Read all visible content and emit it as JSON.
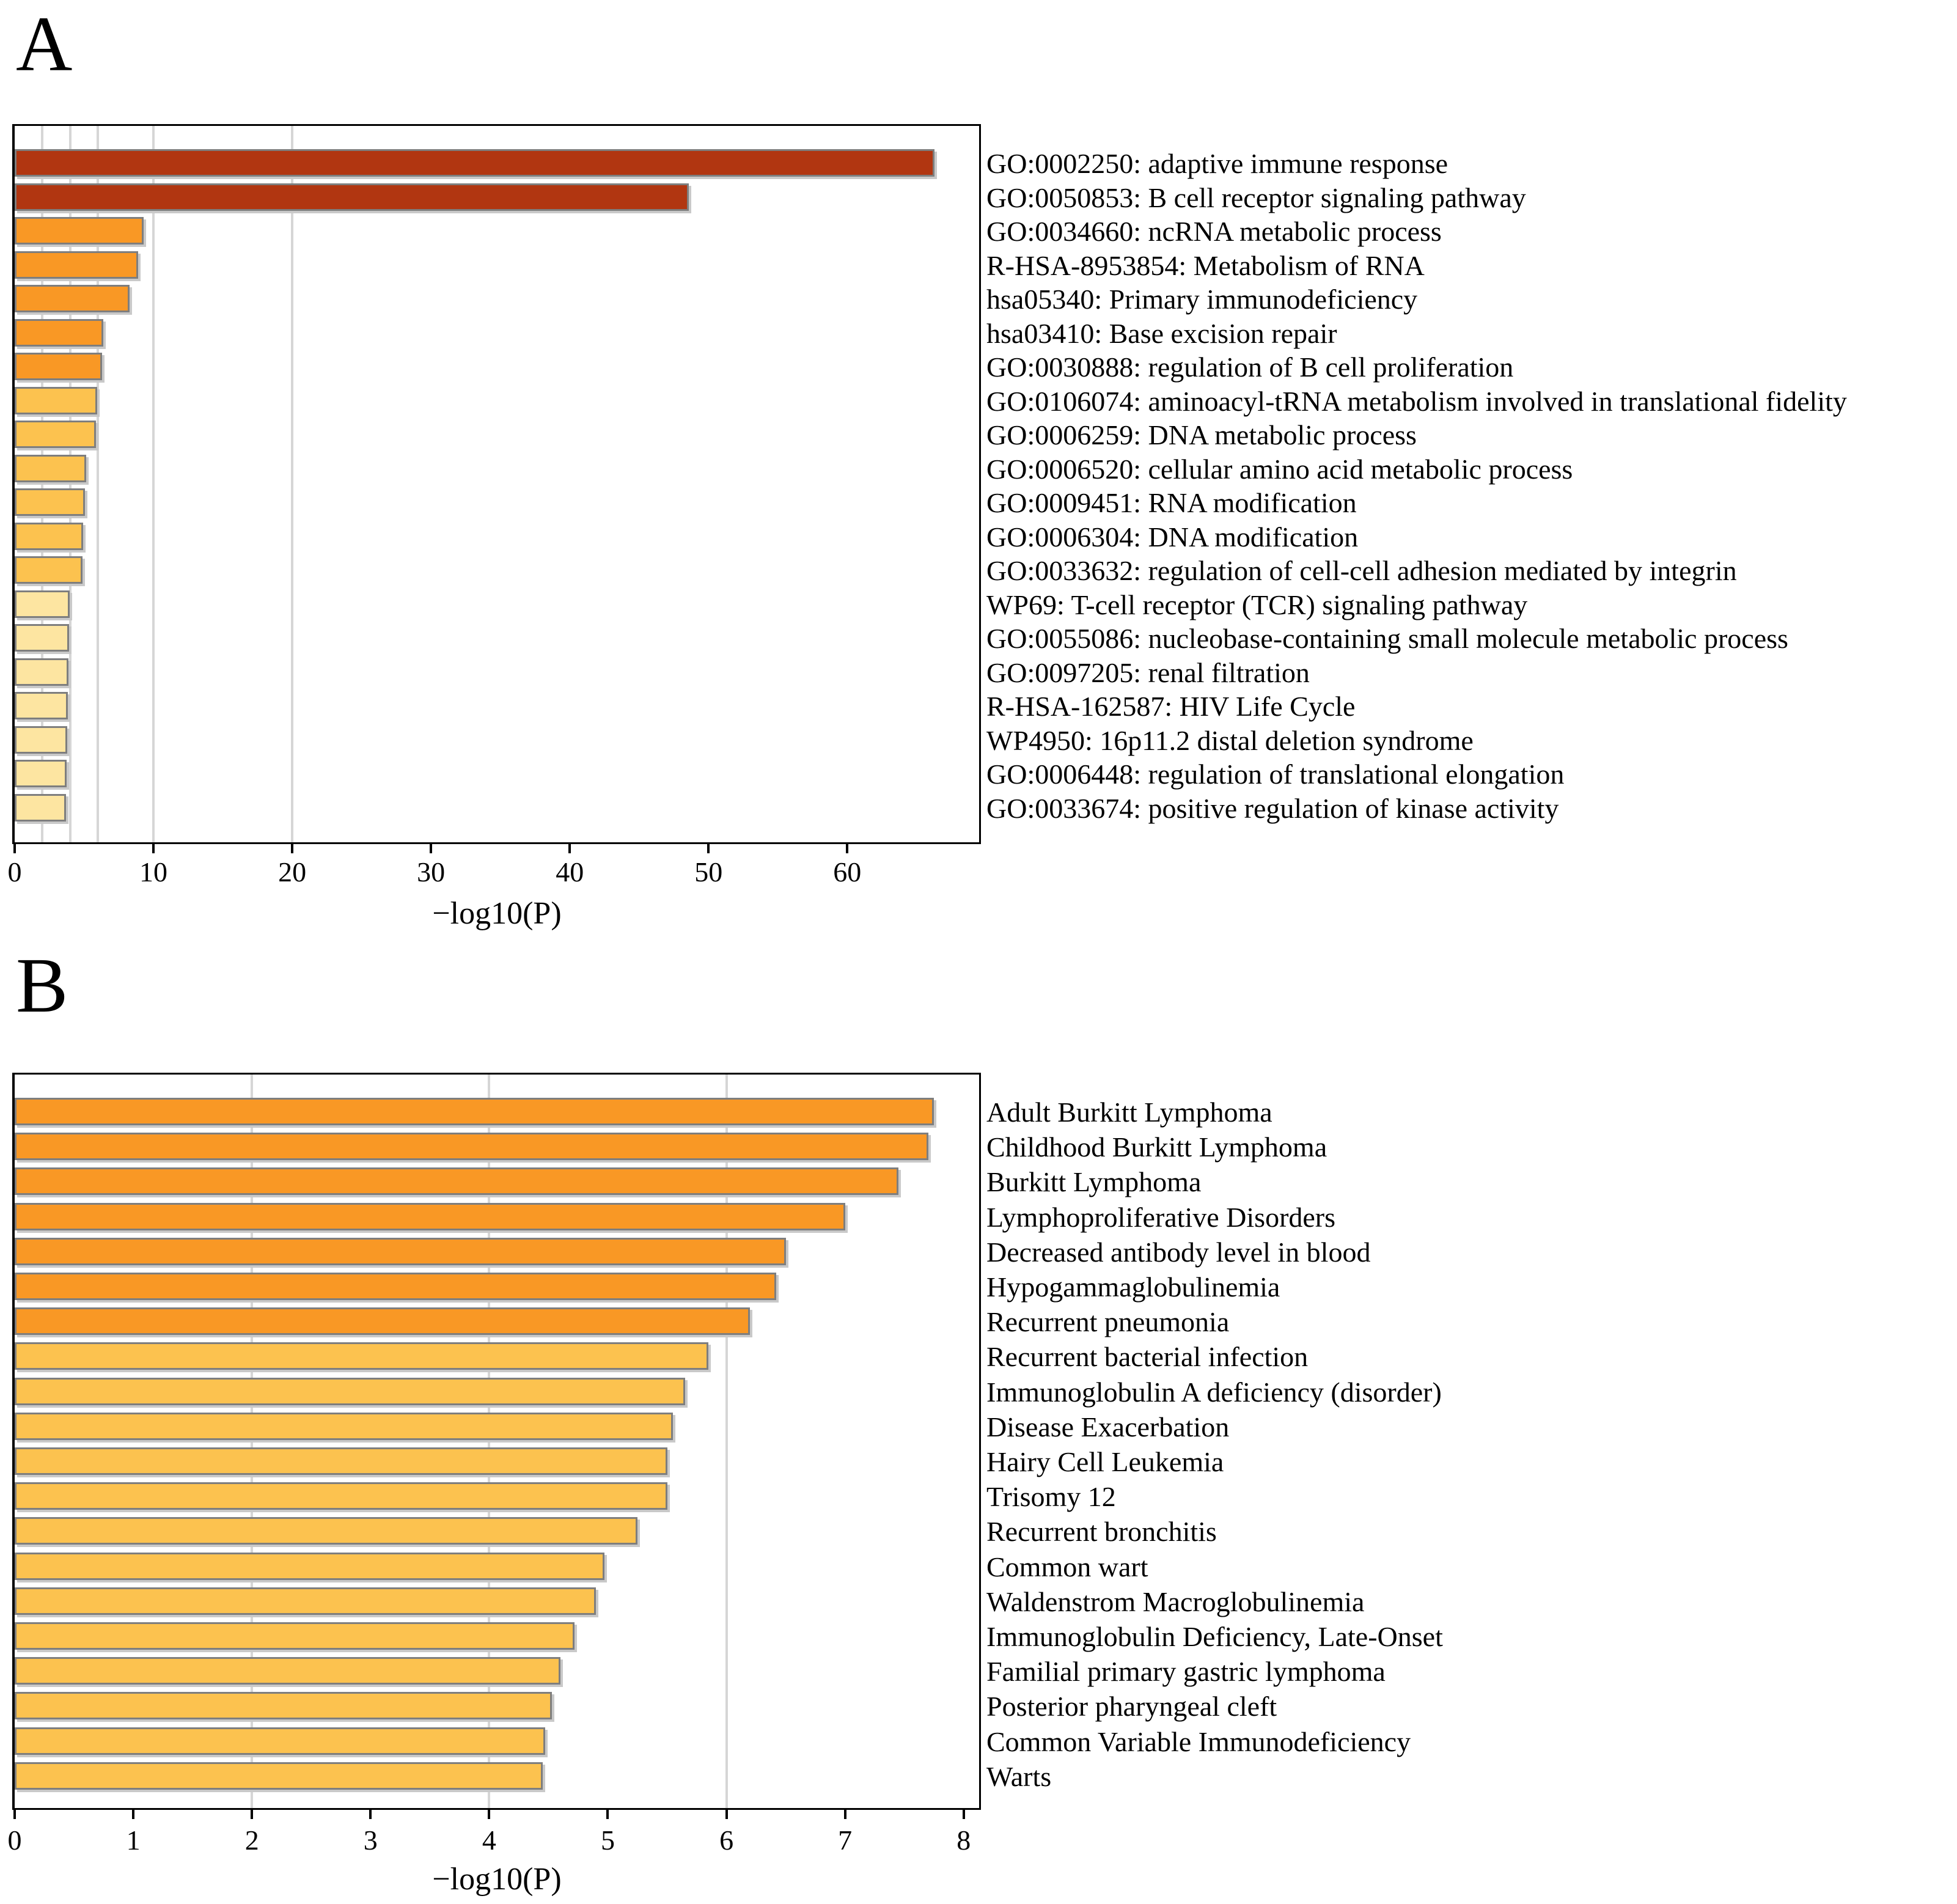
{
  "figure_type": "pathway-and-disease-enrichment-bar-charts",
  "colors": {
    "brick": "#B13611",
    "orange": "#F99825",
    "light_orange": "#FCC24F",
    "pale_yellow": "#FDE5A1",
    "grid": "#d6d6d6",
    "bar_border": "#7e7e7e",
    "axis": "#000000"
  },
  "panels": [
    {
      "letter": "A",
      "xlabel": "−log10(P)"
    },
    {
      "letter": "B",
      "xlabel": "−log10(P)"
    }
  ],
  "chart_data": [
    {
      "id": "A",
      "type": "bar",
      "orientation": "horizontal",
      "xlabel": "−log10(P)",
      "xlim": [
        0,
        69.5
      ],
      "xticks": [
        0,
        10,
        20,
        30,
        40,
        50,
        60
      ],
      "gridlines": [
        2,
        4,
        6,
        10,
        20
      ],
      "legend_position": "none",
      "categories": [
        "GO:0002250: adaptive immune response",
        "GO:0050853: B cell receptor signaling pathway",
        "GO:0034660: ncRNA metabolic process",
        "R-HSA-8953854: Metabolism of RNA",
        "hsa05340: Primary immunodeficiency",
        "hsa03410: Base excision repair",
        "GO:0030888: regulation of B cell proliferation",
        "GO:0106074: aminoacyl-tRNA metabolism involved in translational fidelity",
        "GO:0006259: DNA metabolic process",
        "GO:0006520: cellular amino acid metabolic process",
        "GO:0009451: RNA modification",
        "GO:0006304: DNA modification",
        "GO:0033632: regulation of cell-cell adhesion mediated by integrin",
        "WP69: T-cell receptor (TCR) signaling pathway",
        "GO:0055086: nucleobase-containing small molecule metabolic process",
        "GO:0097205: renal filtration",
        "R-HSA-162587: HIV Life Cycle",
        "WP4950: 16p11.2 distal deletion syndrome",
        "GO:0006448: regulation of translational elongation",
        "GO:0033674: positive regulation of kinase activity"
      ],
      "values": [
        66.3,
        48.6,
        9.3,
        8.9,
        8.3,
        6.4,
        6.3,
        5.95,
        5.85,
        5.15,
        5.05,
        4.95,
        4.9,
        3.98,
        3.92,
        3.88,
        3.84,
        3.8,
        3.76,
        3.72
      ],
      "color_buckets": [
        "brick",
        "brick",
        "orange",
        "orange",
        "orange",
        "orange",
        "orange",
        "light_orange",
        "light_orange",
        "light_orange",
        "light_orange",
        "light_orange",
        "light_orange",
        "pale_yellow",
        "pale_yellow",
        "pale_yellow",
        "pale_yellow",
        "pale_yellow",
        "pale_yellow",
        "pale_yellow"
      ]
    },
    {
      "id": "B",
      "type": "bar",
      "orientation": "horizontal",
      "xlabel": "−log10(P)",
      "xlim": [
        0,
        8.13
      ],
      "xticks": [
        0,
        1,
        2,
        3,
        4,
        5,
        6,
        7,
        8
      ],
      "gridlines": [
        2,
        4,
        6
      ],
      "legend_position": "none",
      "categories": [
        "Adult Burkitt Lymphoma",
        "Childhood Burkitt Lymphoma",
        "Burkitt Lymphoma",
        "Lymphoproliferative Disorders",
        "Decreased antibody level in blood",
        "Hypogammaglobulinemia",
        "Recurrent pneumonia",
        "Recurrent bacterial infection",
        "Immunoglobulin A deficiency (disorder)",
        "Disease Exacerbation",
        "Hairy Cell Leukemia",
        "Trisomy 12",
        "Recurrent bronchitis",
        "Common wart",
        "Waldenstrom Macroglobulinemia",
        "Immunoglobulin Deficiency, Late-Onset",
        "Familial primary gastric lymphoma",
        "Posterior pharyngeal cleft",
        "Common Variable Immunodeficiency",
        "Warts"
      ],
      "values": [
        7.75,
        7.7,
        7.45,
        7.0,
        6.5,
        6.42,
        6.2,
        5.85,
        5.65,
        5.55,
        5.5,
        5.5,
        5.25,
        4.97,
        4.9,
        4.72,
        4.6,
        4.53,
        4.47,
        4.45
      ],
      "color_buckets": [
        "orange",
        "orange",
        "orange",
        "orange",
        "orange",
        "orange",
        "orange",
        "light_orange",
        "light_orange",
        "light_orange",
        "light_orange",
        "light_orange",
        "light_orange",
        "light_orange",
        "light_orange",
        "light_orange",
        "light_orange",
        "light_orange",
        "light_orange",
        "light_orange"
      ]
    }
  ]
}
